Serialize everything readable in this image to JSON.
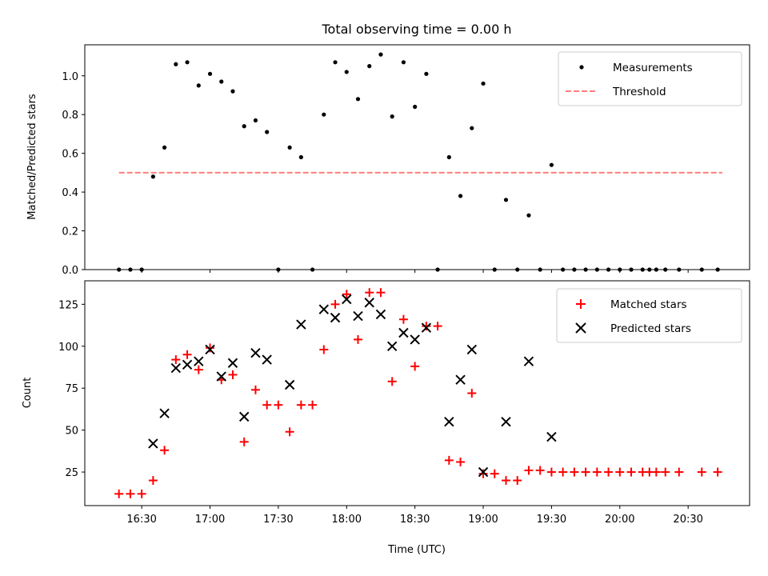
{
  "chart_data": [
    {
      "type": "scatter",
      "title": "Total observing time = 0.00 h",
      "ylabel": "Matched/Predicted stars",
      "xlabel": "",
      "ylim": [
        0,
        1.16
      ],
      "xlim_minutes": [
        965,
        1257
      ],
      "yticks": [
        0.0,
        0.2,
        0.4,
        0.6,
        0.8,
        1.0
      ],
      "ytick_labels": [
        "0.0",
        "0.2",
        "0.4",
        "0.6",
        "0.8",
        "1.0"
      ],
      "legend": {
        "placement": "top-right",
        "entries": [
          {
            "label": "Measurements",
            "marker": "dot",
            "color": "#000000"
          },
          {
            "label": "Threshold",
            "marker": "dashed-line",
            "color": "#ff7f7f"
          }
        ]
      },
      "threshold": {
        "value": 0.5,
        "x_start": "16:20",
        "x_end": "20:45",
        "color": "#ff7f7f"
      },
      "series": [
        {
          "name": "Measurements",
          "color": "#000000",
          "points": [
            [
              "16:20",
              0
            ],
            [
              "16:25",
              0
            ],
            [
              "16:30",
              0
            ],
            [
              "16:35",
              0.48
            ],
            [
              "16:40",
              0.63
            ],
            [
              "16:45",
              1.06
            ],
            [
              "16:50",
              1.07
            ],
            [
              "16:55",
              0.95
            ],
            [
              "17:00",
              1.01
            ],
            [
              "17:05",
              0.97
            ],
            [
              "17:10",
              0.92
            ],
            [
              "17:15",
              0.74
            ],
            [
              "17:20",
              0.77
            ],
            [
              "17:25",
              0.71
            ],
            [
              "17:30",
              0
            ],
            [
              "17:35",
              0.63
            ],
            [
              "17:40",
              0.58
            ],
            [
              "17:45",
              0
            ],
            [
              "17:50",
              0.8
            ],
            [
              "17:55",
              1.07
            ],
            [
              "18:00",
              1.02
            ],
            [
              "18:05",
              0.88
            ],
            [
              "18:10",
              1.05
            ],
            [
              "18:15",
              1.11
            ],
            [
              "18:20",
              0.79
            ],
            [
              "18:25",
              1.07
            ],
            [
              "18:30",
              0.84
            ],
            [
              "18:35",
              1.01
            ],
            [
              "18:40",
              0
            ],
            [
              "18:45",
              0.58
            ],
            [
              "18:50",
              0.38
            ],
            [
              "18:55",
              0.73
            ],
            [
              "19:00",
              0.96
            ],
            [
              "19:05",
              0
            ],
            [
              "19:10",
              0.36
            ],
            [
              "19:15",
              0
            ],
            [
              "19:20",
              0.28
            ],
            [
              "19:25",
              0
            ],
            [
              "19:30",
              0.54
            ],
            [
              "19:35",
              0
            ],
            [
              "19:40",
              0
            ],
            [
              "19:45",
              0
            ],
            [
              "19:50",
              0
            ],
            [
              "19:55",
              0
            ],
            [
              "20:00",
              0
            ],
            [
              "20:05",
              0
            ],
            [
              "20:10",
              0
            ],
            [
              "20:13",
              0
            ],
            [
              "20:16",
              0
            ],
            [
              "20:20",
              0
            ],
            [
              "20:26",
              0
            ],
            [
              "20:36",
              0
            ],
            [
              "20:43",
              0
            ]
          ]
        }
      ]
    },
    {
      "type": "scatter",
      "title": "",
      "ylabel": "Count",
      "xlabel": "Time (UTC)",
      "ylim": [
        5,
        139
      ],
      "xlim_minutes": [
        965,
        1257
      ],
      "yticks": [
        25,
        50,
        75,
        100,
        125
      ],
      "ytick_labels": [
        "25",
        "50",
        "75",
        "100",
        "125"
      ],
      "xtick_labels": [
        "16:30",
        "17:00",
        "17:30",
        "18:00",
        "18:30",
        "19:00",
        "19:30",
        "20:00",
        "20:30"
      ],
      "legend": {
        "placement": "top-right",
        "entries": [
          {
            "label": "Matched stars",
            "marker": "plus",
            "color": "#ff0000"
          },
          {
            "label": "Predicted stars",
            "marker": "x",
            "color": "#000000"
          }
        ]
      },
      "series": [
        {
          "name": "Matched stars",
          "color": "#ff0000",
          "points": [
            [
              "16:20",
              12
            ],
            [
              "16:25",
              12
            ],
            [
              "16:30",
              12
            ],
            [
              "16:35",
              20
            ],
            [
              "16:40",
              38
            ],
            [
              "16:45",
              92
            ],
            [
              "16:50",
              95
            ],
            [
              "16:55",
              86
            ],
            [
              "17:00",
              99
            ],
            [
              "17:05",
              80
            ],
            [
              "17:10",
              83
            ],
            [
              "17:15",
              43
            ],
            [
              "17:20",
              74
            ],
            [
              "17:25",
              65
            ],
            [
              "17:30",
              65
            ],
            [
              "17:35",
              49
            ],
            [
              "17:40",
              65
            ],
            [
              "17:45",
              65
            ],
            [
              "17:50",
              98
            ],
            [
              "17:55",
              125
            ],
            [
              "18:00",
              131
            ],
            [
              "18:05",
              104
            ],
            [
              "18:10",
              132
            ],
            [
              "18:15",
              132
            ],
            [
              "18:20",
              79
            ],
            [
              "18:25",
              116
            ],
            [
              "18:30",
              88
            ],
            [
              "18:35",
              112
            ],
            [
              "18:40",
              112
            ],
            [
              "18:45",
              32
            ],
            [
              "18:50",
              31
            ],
            [
              "18:55",
              72
            ],
            [
              "19:00",
              24
            ],
            [
              "19:05",
              24
            ],
            [
              "19:10",
              20
            ],
            [
              "19:15",
              20
            ],
            [
              "19:20",
              26
            ],
            [
              "19:25",
              26
            ],
            [
              "19:30",
              25
            ],
            [
              "19:35",
              25
            ],
            [
              "19:40",
              25
            ],
            [
              "19:45",
              25
            ],
            [
              "19:50",
              25
            ],
            [
              "19:55",
              25
            ],
            [
              "20:00",
              25
            ],
            [
              "20:05",
              25
            ],
            [
              "20:10",
              25
            ],
            [
              "20:13",
              25
            ],
            [
              "20:16",
              25
            ],
            [
              "20:20",
              25
            ],
            [
              "20:26",
              25
            ],
            [
              "20:36",
              25
            ],
            [
              "20:43",
              25
            ]
          ]
        },
        {
          "name": "Predicted stars",
          "color": "#000000",
          "points": [
            [
              "16:35",
              42
            ],
            [
              "16:40",
              60
            ],
            [
              "16:45",
              87
            ],
            [
              "16:50",
              89
            ],
            [
              "16:55",
              91
            ],
            [
              "17:00",
              98
            ],
            [
              "17:05",
              82
            ],
            [
              "17:10",
              90
            ],
            [
              "17:15",
              58
            ],
            [
              "17:20",
              96
            ],
            [
              "17:25",
              92
            ],
            [
              "17:35",
              77
            ],
            [
              "17:40",
              113
            ],
            [
              "17:50",
              122
            ],
            [
              "17:55",
              117
            ],
            [
              "18:00",
              128
            ],
            [
              "18:05",
              118
            ],
            [
              "18:10",
              126
            ],
            [
              "18:15",
              119
            ],
            [
              "18:20",
              100
            ],
            [
              "18:25",
              108
            ],
            [
              "18:30",
              104
            ],
            [
              "18:35",
              111
            ],
            [
              "18:45",
              55
            ],
            [
              "18:50",
              80
            ],
            [
              "18:55",
              98
            ],
            [
              "19:00",
              25
            ],
            [
              "19:10",
              55
            ],
            [
              "19:20",
              91
            ],
            [
              "19:30",
              46
            ]
          ]
        }
      ]
    }
  ]
}
